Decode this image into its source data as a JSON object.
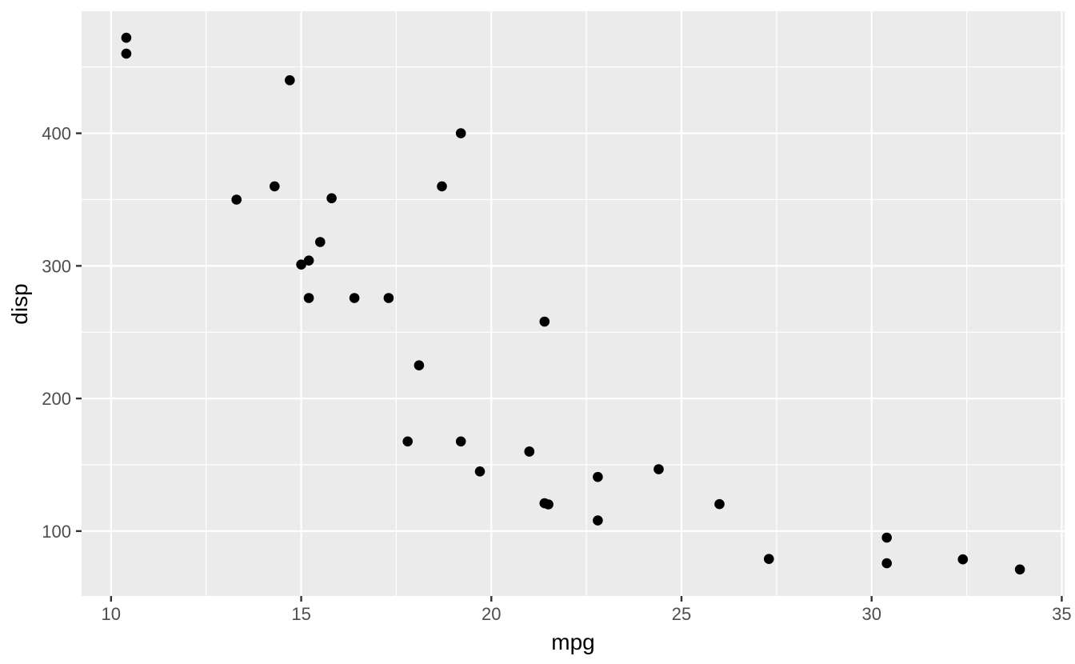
{
  "chart_data": {
    "type": "scatter",
    "title": "",
    "xlabel": "mpg",
    "ylabel": "disp",
    "x_ticks": [
      10,
      15,
      20,
      25,
      30,
      35
    ],
    "x_minor_ticks": [
      12.5,
      17.5,
      22.5,
      27.5,
      32.5
    ],
    "y_ticks": [
      100,
      200,
      300,
      400
    ],
    "y_minor_ticks": [
      150,
      250,
      350,
      450
    ],
    "xlim": [
      9.225,
      35.075
    ],
    "ylim": [
      51.05,
      492.05
    ],
    "grid": "major+minor",
    "legend_position": "none",
    "series": [
      {
        "name": "points",
        "points": [
          [
            21.0,
            160.0
          ],
          [
            21.0,
            160.0
          ],
          [
            22.8,
            108.0
          ],
          [
            21.4,
            258.0
          ],
          [
            18.7,
            360.0
          ],
          [
            18.1,
            225.0
          ],
          [
            14.3,
            360.0
          ],
          [
            24.4,
            146.7
          ],
          [
            22.8,
            140.8
          ],
          [
            19.2,
            167.6
          ],
          [
            17.8,
            167.6
          ],
          [
            16.4,
            275.8
          ],
          [
            17.3,
            275.8
          ],
          [
            15.2,
            275.8
          ],
          [
            10.4,
            472.0
          ],
          [
            10.4,
            460.0
          ],
          [
            14.7,
            440.0
          ],
          [
            32.4,
            78.7
          ],
          [
            30.4,
            75.7
          ],
          [
            33.9,
            71.1
          ],
          [
            21.5,
            120.1
          ],
          [
            15.5,
            318.0
          ],
          [
            15.2,
            304.0
          ],
          [
            13.3,
            350.0
          ],
          [
            19.2,
            400.0
          ],
          [
            27.3,
            79.0
          ],
          [
            26.0,
            120.3
          ],
          [
            30.4,
            95.1
          ],
          [
            15.8,
            351.0
          ],
          [
            19.7,
            145.0
          ],
          [
            15.0,
            301.0
          ],
          [
            21.4,
            121.0
          ]
        ]
      }
    ]
  },
  "style": {
    "panel_bg": "#EBEBEB",
    "outer_bg": "#FFFFFF",
    "grid_color": "#FFFFFF",
    "point_color": "#000000",
    "tick_mark_color": "#333333",
    "tick_label_color": "#4D4D4D",
    "axis_title_color": "#000000"
  }
}
